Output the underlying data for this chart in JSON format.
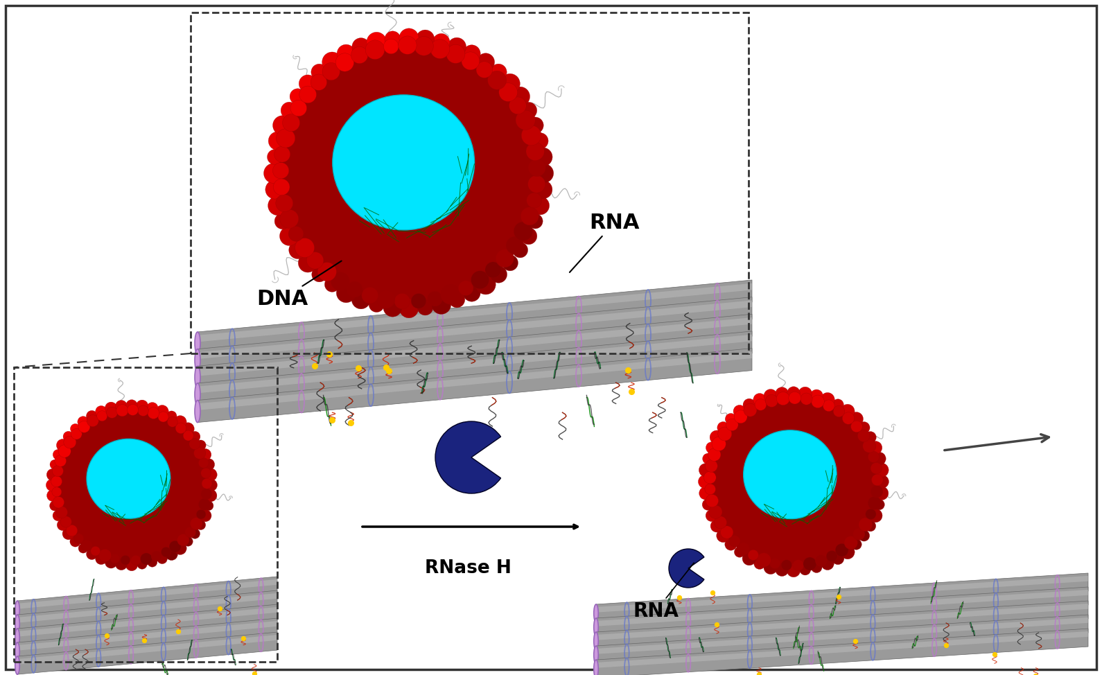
{
  "bg_color": "#ffffff",
  "border_color": "#333333",
  "vesicle_red": "#dd1111",
  "vesicle_red_bright": "#ff3333",
  "vesicle_red_dark": "#990000",
  "vesicle_cyan": "#00e5ff",
  "vesicle_cyan_edge": "#00bbcc",
  "filament_gray": "#9a9a9a",
  "filament_dark": "#666666",
  "filament_highlight": "#cccccc",
  "filament_end_purple": "#9966bb",
  "filament_end_lavender": "#cc99dd",
  "ring_blue": "#6677cc",
  "ring_purple": "#bb77cc",
  "enzyme_dark_blue": "#1a237e",
  "dna_label": "DNA",
  "rna_label": "RNA",
  "rnase_label": "RNase H",
  "label_fontsize": 20,
  "rnase_fontsize": 19
}
